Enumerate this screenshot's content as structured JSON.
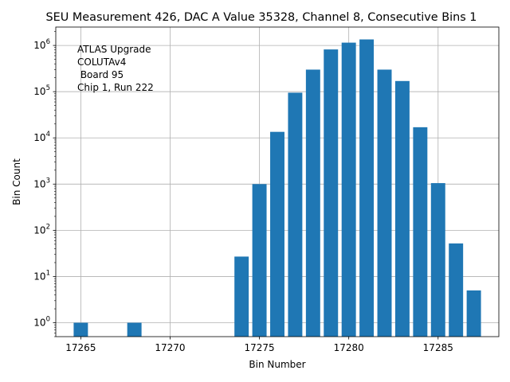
{
  "chart_data": {
    "type": "bar",
    "title": "SEU Measurement 426, DAC A Value 35328, Channel 8, Consecutive Bins 1",
    "xlabel": "Bin Number",
    "ylabel": "Bin Count",
    "yscale": "log",
    "xlim": [
      17263.6,
      17288.4
    ],
    "ylim": [
      0.5,
      2500000
    ],
    "grid": true,
    "bar_color": "#1f77b4",
    "bins": [
      17265,
      17268,
      17274,
      17275,
      17276,
      17277,
      17278,
      17279,
      17280,
      17281,
      17282,
      17283,
      17284,
      17285,
      17286,
      17287
    ],
    "values": [
      1,
      1,
      27,
      1000,
      13500,
      95000,
      300000,
      820000,
      1150000,
      1350000,
      300000,
      170000,
      17000,
      1050,
      52,
      5
    ],
    "x_ticks": [
      17265,
      17270,
      17275,
      17280,
      17285
    ],
    "y_ticks": [
      1,
      10,
      100,
      1000,
      10000,
      100000,
      1000000
    ],
    "annotation_lines": [
      "ATLAS Upgrade",
      "COLUTAv4",
      " Board 95",
      "Chip 1, Run 222"
    ]
  }
}
